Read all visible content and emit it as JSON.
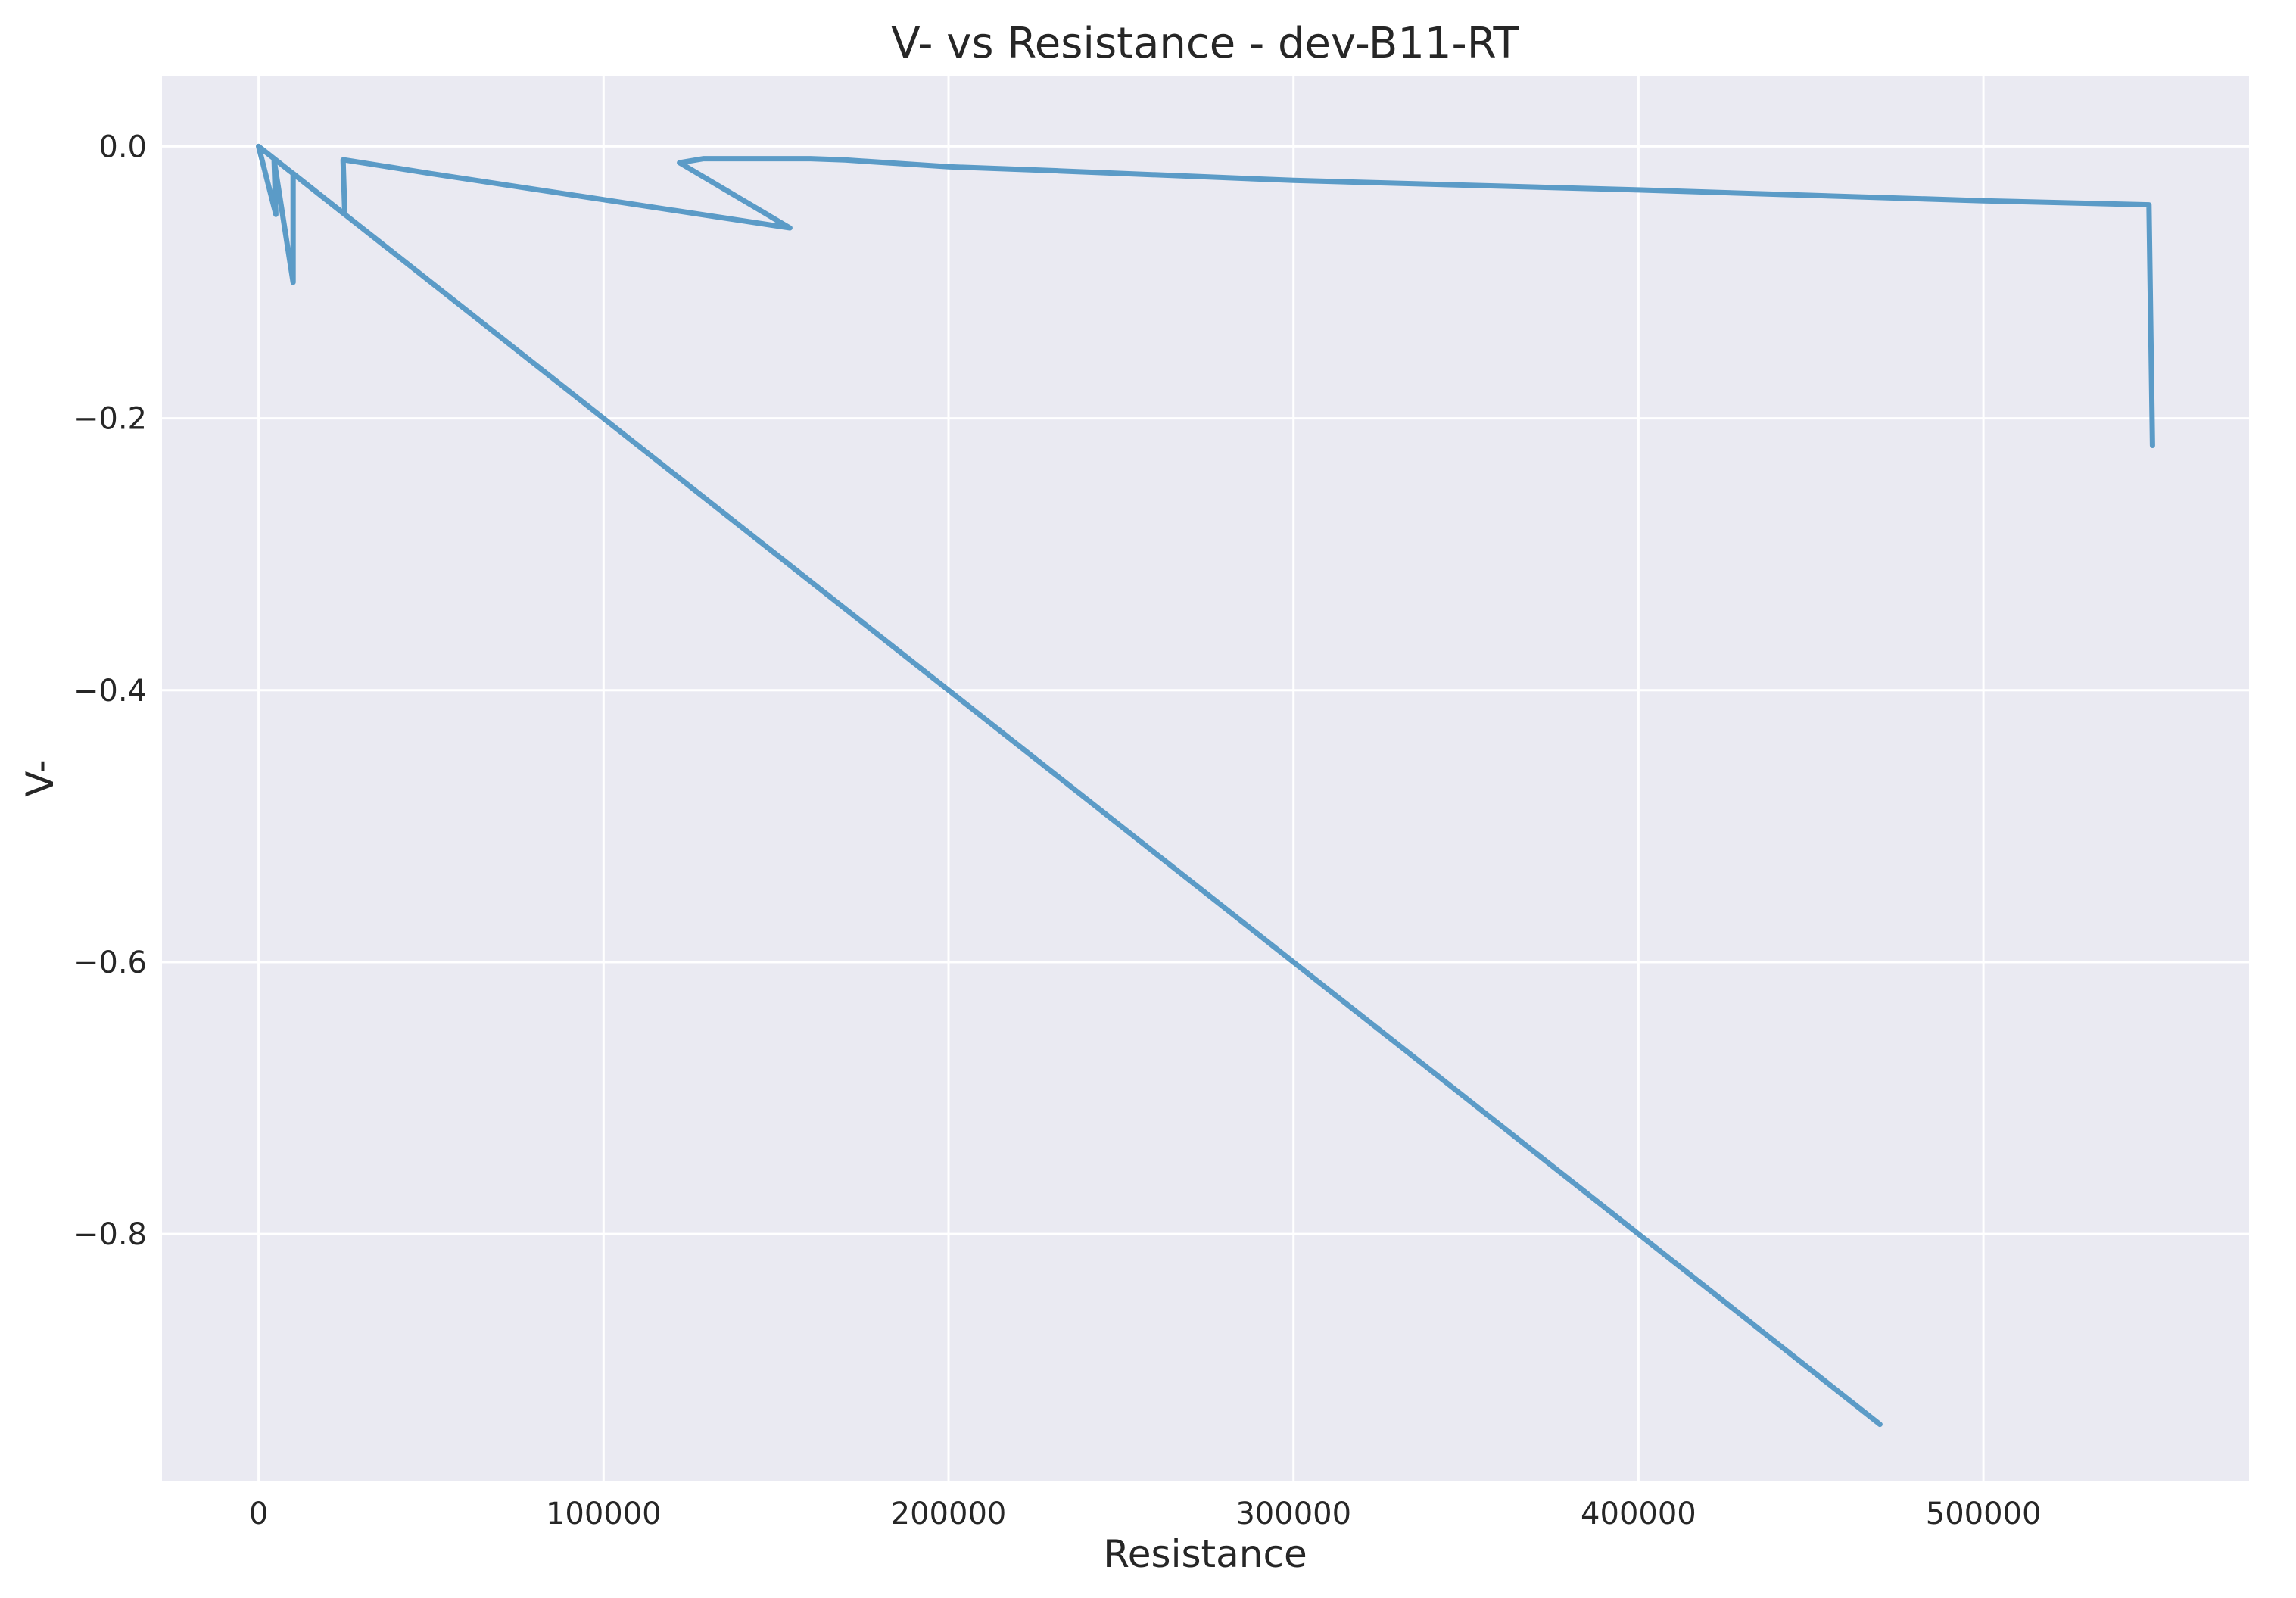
{
  "chart_data": {
    "type": "line",
    "title": "V- vs Resistance - dev-B11-RT",
    "xlabel": "Resistance",
    "ylabel": "V-",
    "xlim": [
      -28000,
      577000
    ],
    "ylim": [
      -0.982,
      0.052
    ],
    "grid": true,
    "legend": "none",
    "x_ticks": [
      0,
      100000,
      200000,
      300000,
      400000,
      500000
    ],
    "x_tick_labels": [
      "0",
      "100000",
      "200000",
      "300000",
      "400000",
      "500000"
    ],
    "y_ticks": [
      0.0,
      -0.2,
      -0.4,
      -0.6,
      -0.8
    ],
    "y_tick_labels": [
      "0.0",
      "−0.2",
      "−0.4",
      "−0.6",
      "−0.8"
    ],
    "colors": {
      "background": "#eaeaf2",
      "grid": "#ffffff",
      "line": "#5b9bc7"
    },
    "series": [
      {
        "x": [
          0,
          5000,
          4500,
          10000,
          10000,
          10000,
          25000,
          24500,
          25000,
          45000,
          50000,
          154000,
          122000,
          129000,
          145000,
          160000,
          170000,
          200000,
          232000,
          300000,
          400000,
          500000,
          548000,
          549000
        ],
        "y": [
          0.0,
          -0.05,
          -0.01,
          -0.1,
          -0.02,
          -0.02,
          -0.05,
          -0.01,
          -0.01,
          -0.018,
          -0.02,
          -0.06,
          -0.012,
          -0.009,
          -0.009,
          -0.009,
          -0.01,
          -0.015,
          -0.018,
          -0.025,
          -0.032,
          -0.04,
          -0.043,
          -0.22
        ]
      },
      {
        "x": [
          0,
          25000,
          100000,
          200000,
          300000,
          400000,
          470000
        ],
        "y": [
          0.0,
          -0.05,
          -0.2,
          -0.4,
          -0.6,
          -0.8,
          -0.94
        ]
      }
    ]
  }
}
